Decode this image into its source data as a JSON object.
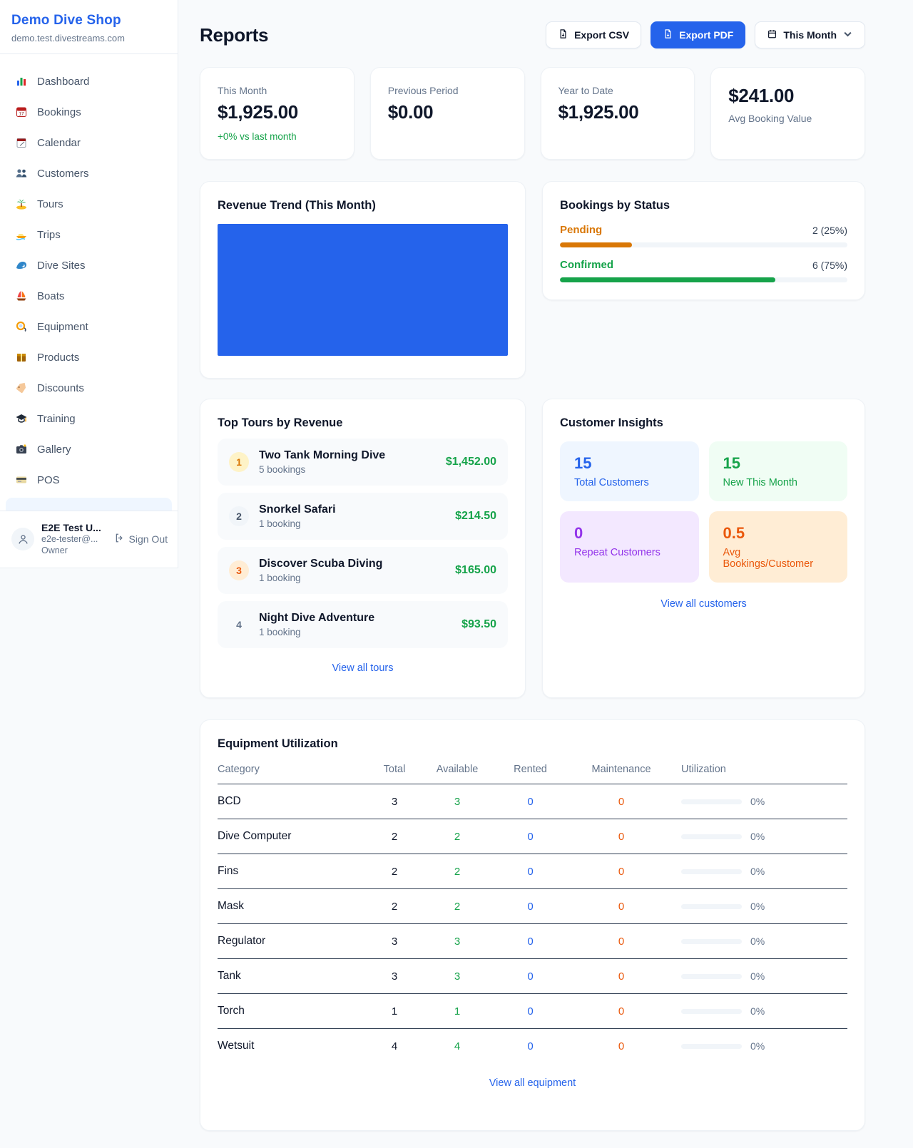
{
  "sidebar": {
    "brand": {
      "name": "Demo Dive Shop",
      "domain": "demo.test.divestreams.com"
    },
    "nav": [
      {
        "label": "Dashboard",
        "icon": "dashboard-icon"
      },
      {
        "label": "Bookings",
        "icon": "bookings-icon"
      },
      {
        "label": "Calendar",
        "icon": "calendar-icon"
      },
      {
        "label": "Customers",
        "icon": "customers-icon"
      },
      {
        "label": "Tours",
        "icon": "tours-icon"
      },
      {
        "label": "Trips",
        "icon": "trips-icon"
      },
      {
        "label": "Dive Sites",
        "icon": "dive-sites-icon"
      },
      {
        "label": "Boats",
        "icon": "boats-icon"
      },
      {
        "label": "Equipment",
        "icon": "equipment-icon"
      },
      {
        "label": "Products",
        "icon": "products-icon"
      },
      {
        "label": "Discounts",
        "icon": "discounts-icon"
      },
      {
        "label": "Training",
        "icon": "training-icon"
      },
      {
        "label": "Gallery",
        "icon": "gallery-icon"
      },
      {
        "label": "POS",
        "icon": "pos-icon"
      }
    ],
    "user": {
      "name": "E2E Test U...",
      "email": "e2e-tester@...",
      "role": "Owner",
      "sign_out_label": "Sign Out"
    }
  },
  "header": {
    "title": "Reports",
    "export_csv_label": "Export CSV",
    "export_pdf_label": "Export PDF",
    "period_label": "This Month"
  },
  "stats": [
    {
      "label": "This Month",
      "value": "$1,925.00",
      "delta": "+0% vs last month"
    },
    {
      "label": "Previous Period",
      "value": "$0.00"
    },
    {
      "label": "Year to Date",
      "value": "$1,925.00"
    },
    {
      "label": "Avg Booking Value",
      "value": "$241.00",
      "value_first": true
    }
  ],
  "revenue_trend": {
    "title": "Revenue Trend (This Month)",
    "fill_color": "#2563eb"
  },
  "bookings_by_status": {
    "title": "Bookings by Status",
    "rows": [
      {
        "label": "Pending",
        "value": "2 (25%)",
        "percent": 25,
        "color": "#d97706"
      },
      {
        "label": "Confirmed",
        "value": "6 (75%)",
        "percent": 75,
        "color": "#16a34a"
      }
    ]
  },
  "top_tours": {
    "title": "Top Tours by Revenue",
    "rows": [
      {
        "rank": "1",
        "name": "Two Tank Morning Dive",
        "bookings": "5 bookings",
        "revenue": "$1,452.00",
        "badge_bg": "#fef3c7",
        "badge_color": "#d97706"
      },
      {
        "rank": "2",
        "name": "Snorkel Safari",
        "bookings": "1 booking",
        "revenue": "$214.50",
        "badge_bg": "#f1f5f9",
        "badge_color": "#475569"
      },
      {
        "rank": "3",
        "name": "Discover Scuba Diving",
        "bookings": "1 booking",
        "revenue": "$165.00",
        "badge_bg": "#ffedd5",
        "badge_color": "#ea580c"
      },
      {
        "rank": "4",
        "name": "Night Dive Adventure",
        "bookings": "1 booking",
        "revenue": "$93.50",
        "badge_bg": "transparent",
        "badge_color": "#64748b"
      }
    ],
    "view_all": "View all tours"
  },
  "customer_insights": {
    "title": "Customer Insights",
    "tiles": [
      {
        "value": "15",
        "label": "Total Customers",
        "bg": "#eff6ff",
        "color": "#2563eb"
      },
      {
        "value": "15",
        "label": "New This Month",
        "bg": "#f0fdf4",
        "color": "#16a34a"
      },
      {
        "value": "0",
        "label": "Repeat Customers",
        "bg": "#f3e8ff",
        "color": "#9333ea"
      },
      {
        "value": "0.5",
        "label": "Avg Bookings/Customer",
        "bg": "#ffedd5",
        "color": "#ea580c"
      }
    ],
    "view_all": "View all customers"
  },
  "equipment": {
    "title": "Equipment Utilization",
    "columns": [
      "Category",
      "Total",
      "Available",
      "Rented",
      "Maintenance",
      "Utilization"
    ],
    "rows": [
      {
        "category": "BCD",
        "total": "3",
        "available": "3",
        "rented": "0",
        "maintenance": "0",
        "utilization": "0%"
      },
      {
        "category": "Dive Computer",
        "total": "2",
        "available": "2",
        "rented": "0",
        "maintenance": "0",
        "utilization": "0%"
      },
      {
        "category": "Fins",
        "total": "2",
        "available": "2",
        "rented": "0",
        "maintenance": "0",
        "utilization": "0%"
      },
      {
        "category": "Mask",
        "total": "2",
        "available": "2",
        "rented": "0",
        "maintenance": "0",
        "utilization": "0%"
      },
      {
        "category": "Regulator",
        "total": "3",
        "available": "3",
        "rented": "0",
        "maintenance": "0",
        "utilization": "0%"
      },
      {
        "category": "Tank",
        "total": "3",
        "available": "3",
        "rented": "0",
        "maintenance": "0",
        "utilization": "0%"
      },
      {
        "category": "Torch",
        "total": "1",
        "available": "1",
        "rented": "0",
        "maintenance": "0",
        "utilization": "0%"
      },
      {
        "category": "Wetsuit",
        "total": "4",
        "available": "4",
        "rented": "0",
        "maintenance": "0",
        "utilization": "0%"
      }
    ],
    "view_all": "View all equipment"
  },
  "colors": {
    "accent": "#2563eb",
    "success": "#16a34a",
    "warning": "#d97706",
    "danger": "#ea580c",
    "background": "#f8fafc"
  }
}
